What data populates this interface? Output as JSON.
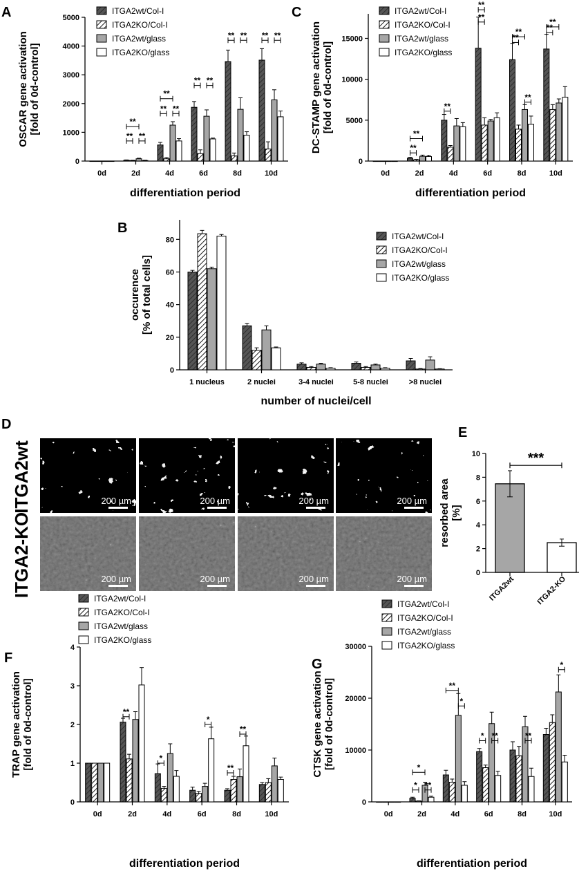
{
  "colors": {
    "wt_col": "#555555",
    "wt_glass": "#a6a6a6",
    "ko_glass": "#ffffff",
    "stroke": "#000000"
  },
  "panels": [
    {
      "label": "A"
    },
    {
      "label": "B"
    },
    {
      "label": "C"
    },
    {
      "label": "D"
    },
    {
      "label": "E"
    },
    {
      "label": "F"
    },
    {
      "label": "G"
    }
  ],
  "micro": {
    "rows": [
      "ITGA2wt",
      "ITGA2-KO"
    ],
    "scale_bar": "200 µm",
    "images_per_row": 4
  },
  "chart_data": [
    {
      "id": "A",
      "type": "bar",
      "categories": [
        "0d",
        "2d",
        "4d",
        "6d",
        "8d",
        "10d"
      ],
      "xlabel": "differentiation period",
      "ylabel": "OSCAR gene activation [fold of 0d-control]",
      "ylim": [
        0,
        5000
      ],
      "yticks": [
        0,
        1000,
        2000,
        3000,
        4000,
        5000
      ],
      "series": [
        {
          "name": "ITGA2wt/Col-I",
          "values": [
            1,
            30,
            560,
            1870,
            3460,
            3510
          ],
          "err": [
            0,
            10,
            90,
            200,
            400,
            400
          ]
        },
        {
          "name": "ITGA2KO/Col-I",
          "values": [
            1,
            20,
            80,
            260,
            180,
            420
          ],
          "err": [
            0,
            10,
            40,
            130,
            100,
            250
          ]
        },
        {
          "name": "ITGA2wt/glass",
          "values": [
            1,
            80,
            1250,
            1560,
            1800,
            2130
          ],
          "err": [
            0,
            20,
            120,
            220,
            400,
            350
          ]
        },
        {
          "name": "ITGA2KO/glass",
          "values": [
            1,
            20,
            700,
            770,
            900,
            1540
          ],
          "err": [
            0,
            10,
            80,
            30,
            120,
            200
          ]
        }
      ],
      "sig": [
        {
          "c": 1,
          "a": 0,
          "b": 2,
          "text": "**",
          "y": 1200
        },
        {
          "c": 1,
          "a": 0,
          "b": 1,
          "text": "**",
          "y": 700
        },
        {
          "c": 1,
          "a": 2,
          "b": 3,
          "text": "**",
          "y": 700
        },
        {
          "c": 2,
          "a": 0,
          "b": 2,
          "text": "**",
          "y": 2170
        },
        {
          "c": 2,
          "a": 0,
          "b": 1,
          "text": "**",
          "y": 1650
        },
        {
          "c": 2,
          "a": 2,
          "b": 3,
          "text": "**",
          "y": 1650
        },
        {
          "c": 3,
          "a": 0,
          "b": 1,
          "text": "**",
          "y": 2630
        },
        {
          "c": 3,
          "a": 2,
          "b": 3,
          "text": "**",
          "y": 2630
        },
        {
          "c": 4,
          "a": 0,
          "b": 1,
          "text": "**",
          "y": 4200
        },
        {
          "c": 4,
          "a": 2,
          "b": 3,
          "text": "**",
          "y": 4200
        },
        {
          "c": 5,
          "a": 0,
          "b": 1,
          "text": "**",
          "y": 4200
        },
        {
          "c": 5,
          "a": 2,
          "b": 3,
          "text": "**",
          "y": 4200
        }
      ]
    },
    {
      "id": "C",
      "type": "bar",
      "categories": [
        "0d",
        "2d",
        "4d",
        "6d",
        "8d",
        "10d"
      ],
      "xlabel": "differentiation period",
      "ylabel": "DC-STAMP gene activation [fold of 0d-control]",
      "ylim": [
        0,
        18000
      ],
      "yticks": [
        0,
        5000,
        10000,
        15000
      ],
      "series": [
        {
          "name": "ITGA2wt/Col-I",
          "values": [
            1,
            350,
            5000,
            13800,
            12400,
            13700
          ],
          "err": [
            0,
            100,
            700,
            3800,
            2000,
            1800
          ]
        },
        {
          "name": "ITGA2KO/Col-I",
          "values": [
            1,
            150,
            1700,
            4400,
            3900,
            6300
          ],
          "err": [
            0,
            50,
            200,
            900,
            500,
            600
          ]
        },
        {
          "name": "ITGA2wt/glass",
          "values": [
            1,
            580,
            4300,
            4900,
            6300,
            7100
          ],
          "err": [
            0,
            150,
            900,
            200,
            600,
            500
          ]
        },
        {
          "name": "ITGA2KO/glass",
          "values": [
            1,
            550,
            4200,
            5300,
            4500,
            7800
          ],
          "err": [
            0,
            150,
            500,
            600,
            1000,
            1300
          ]
        }
      ],
      "sig": [
        {
          "c": 1,
          "a": 0,
          "b": 2,
          "text": "**",
          "y": 2750
        },
        {
          "c": 1,
          "a": 0,
          "b": 1,
          "text": "**",
          "y": 1000
        },
        {
          "c": 2,
          "a": 0,
          "b": 1,
          "text": "**",
          "y": 6100
        },
        {
          "c": 3,
          "a": 0,
          "b": 1,
          "text": "**",
          "y": 18500
        },
        {
          "c": 3,
          "a": 0,
          "b": 1,
          "text": "**",
          "y": 17000
        },
        {
          "c": 4,
          "a": 0,
          "b": 2,
          "text": "**",
          "y": 15200
        },
        {
          "c": 4,
          "a": 0,
          "b": 1,
          "text": "**",
          "y": 14500
        },
        {
          "c": 4,
          "a": 2,
          "b": 3,
          "text": "**",
          "y": 7200
        },
        {
          "c": 5,
          "a": 0,
          "b": 2,
          "text": "**",
          "y": 16400
        },
        {
          "c": 5,
          "a": 0,
          "b": 1,
          "text": "**",
          "y": 15700
        }
      ]
    },
    {
      "id": "B",
      "type": "bar",
      "categories": [
        "1 nucleus",
        "2 nuclei",
        "3-4 nuclei",
        "5-8 nuclei",
        ">8 nuclei"
      ],
      "xlabel": "number of nuclei/cell",
      "ylabel": "occurence [% of total cells]",
      "ylim": [
        0,
        92
      ],
      "yticks": [
        0,
        20,
        40,
        60,
        80
      ],
      "series": [
        {
          "name": "ITGA2wt/Col-I",
          "values": [
            60,
            27,
            3.5,
            4,
            5.5
          ],
          "err": [
            1,
            1.5,
            0.8,
            0.8,
            1.5
          ]
        },
        {
          "name": "ITGA2KO/Col-I",
          "values": [
            83.5,
            12,
            1.5,
            1.5,
            0.5
          ],
          "err": [
            2,
            1.5,
            0.5,
            0.5,
            0.3
          ]
        },
        {
          "name": "ITGA2wt/glass",
          "values": [
            62,
            24.5,
            3.5,
            3,
            6
          ],
          "err": [
            1,
            2.5,
            0.5,
            0.5,
            2
          ]
        },
        {
          "name": "ITGA2KO/glass",
          "values": [
            82,
            13.5,
            1,
            1,
            0.5
          ],
          "err": [
            1,
            0.5,
            0.3,
            0.3,
            0.2
          ]
        }
      ],
      "sig": []
    },
    {
      "id": "E",
      "type": "bar",
      "categories": [
        "ITGA2wt",
        "ITGA2-KO"
      ],
      "xlabel": "",
      "ylabel": "resorbed area [%]",
      "ylim": [
        0,
        10
      ],
      "yticks": [
        0,
        2,
        4,
        6,
        8,
        10
      ],
      "values": [
        7.45,
        2.5
      ],
      "err": [
        1.1,
        0.3
      ],
      "sig": [
        {
          "a": 0,
          "b": 1,
          "text": "***",
          "y": 9.0
        }
      ]
    },
    {
      "id": "F",
      "type": "bar",
      "categories": [
        "0d",
        "2d",
        "4d",
        "6d",
        "8d",
        "10d"
      ],
      "xlabel": "differentiation period",
      "ylabel": "TRAP gene activation [fold of 0d-control]",
      "ylim": [
        0,
        4
      ],
      "yticks": [
        0,
        1,
        2,
        3,
        4
      ],
      "series": [
        {
          "name": "ITGA2wt/Col-I",
          "values": [
            1,
            2.06,
            0.73,
            0.3,
            0.3,
            0.45
          ],
          "err": [
            0,
            0.1,
            0.25,
            0.08,
            0.04,
            0.05
          ]
        },
        {
          "name": "ITGA2KO/Col-I",
          "values": [
            1,
            1.11,
            0.35,
            0.22,
            0.58,
            0.5
          ],
          "err": [
            0,
            0.12,
            0.05,
            0.05,
            0.08,
            0.1
          ]
        },
        {
          "name": "ITGA2wt/glass",
          "values": [
            1,
            2.13,
            1.25,
            0.4,
            0.65,
            0.93
          ],
          "err": [
            0,
            0.2,
            0.25,
            0.08,
            0.2,
            0.2
          ]
        },
        {
          "name": "ITGA2KO/glass",
          "values": [
            1,
            3.02,
            0.66,
            1.63,
            1.45,
            0.58
          ],
          "err": [
            0,
            0.45,
            0.15,
            0.3,
            0.25,
            0.06
          ]
        }
      ],
      "sig": [
        {
          "c": 1,
          "a": 0,
          "b": 1,
          "text": "**",
          "y": 2.2
        },
        {
          "c": 2,
          "a": 0,
          "b": 1,
          "text": "*",
          "y": 1.0
        },
        {
          "c": 3,
          "a": 2,
          "b": 3,
          "text": "*",
          "y": 2.0
        },
        {
          "c": 4,
          "a": 0,
          "b": 1,
          "text": "**",
          "y": 0.75
        },
        {
          "c": 4,
          "a": 2,
          "b": 3,
          "text": "**",
          "y": 1.75
        }
      ]
    },
    {
      "id": "G",
      "type": "bar",
      "categories": [
        "0d",
        "2d",
        "4d",
        "6d",
        "8d",
        "10d"
      ],
      "xlabel": "differentiation period",
      "ylabel": "CTSK gene activation [fold of 0d-control]",
      "ylim": [
        0,
        30000
      ],
      "yticks": [
        0,
        10000,
        20000,
        30000
      ],
      "series": [
        {
          "name": "ITGA2wt/Col-I",
          "values": [
            1,
            700,
            5200,
            9700,
            10000,
            13000
          ],
          "err": [
            0,
            200,
            900,
            600,
            1600,
            1200
          ]
        },
        {
          "name": "ITGA2KO/Col-I",
          "values": [
            1,
            150,
            3800,
            6600,
            8900,
            15300
          ],
          "err": [
            0,
            50,
            600,
            500,
            1800,
            1500
          ]
        },
        {
          "name": "ITGA2wt/glass",
          "values": [
            1,
            3200,
            16700,
            15100,
            14500,
            21200
          ],
          "err": [
            0,
            600,
            4200,
            2200,
            2000,
            3300
          ]
        },
        {
          "name": "ITGA2KO/glass",
          "values": [
            1,
            900,
            3200,
            5100,
            4900,
            7700
          ],
          "err": [
            0,
            200,
            700,
            800,
            1600,
            1300
          ]
        }
      ],
      "sig": [
        {
          "c": 1,
          "a": 0,
          "b": 2,
          "text": "*",
          "y": 5700
        },
        {
          "c": 1,
          "a": 0,
          "b": 1,
          "text": "*",
          "y": 2300
        },
        {
          "c": 1,
          "a": 2,
          "b": 3,
          "text": "**",
          "y": 2300
        },
        {
          "c": 2,
          "a": 0,
          "b": 2,
          "text": "**",
          "y": 21500
        },
        {
          "c": 2,
          "a": 2,
          "b": 3,
          "text": "*",
          "y": 18500
        },
        {
          "c": 3,
          "a": 0,
          "b": 1,
          "text": "*",
          "y": 11800
        },
        {
          "c": 3,
          "a": 2,
          "b": 3,
          "text": "**",
          "y": 11800
        },
        {
          "c": 4,
          "a": 2,
          "b": 3,
          "text": "**",
          "y": 11800
        },
        {
          "c": 5,
          "a": 2,
          "b": 3,
          "text": "*",
          "y": 25500
        }
      ]
    }
  ]
}
